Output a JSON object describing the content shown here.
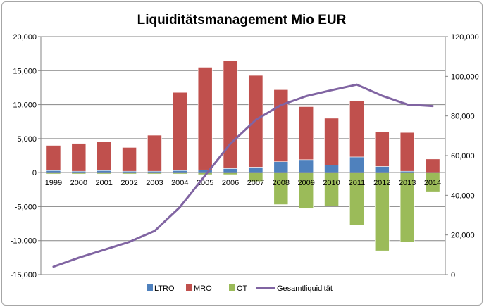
{
  "chart_data": {
    "type": "bar",
    "title": "Liquiditätsmanagement Mio EUR",
    "categories": [
      "1999",
      "2000",
      "2001",
      "2002",
      "2003",
      "2004",
      "2005",
      "2006",
      "2007",
      "2008",
      "2009",
      "2010",
      "2011",
      "2012",
      "2013",
      "2014"
    ],
    "series": [
      {
        "name": "LTRO",
        "type": "bar",
        "stack": "main",
        "axis": "left",
        "color": "#4f81bd",
        "values": [
          300,
          200,
          300,
          200,
          200,
          300,
          400,
          600,
          800,
          1600,
          1900,
          1100,
          2300,
          900,
          200,
          0
        ]
      },
      {
        "name": "MRO",
        "type": "bar",
        "stack": "main",
        "axis": "left",
        "color": "#c0504d",
        "values": [
          3700,
          4100,
          4300,
          3500,
          5300,
          11500,
          15100,
          15900,
          13500,
          10600,
          7800,
          6900,
          8300,
          5100,
          5700,
          2000
        ]
      },
      {
        "name": "OT",
        "type": "bar",
        "stack": "main",
        "axis": "left",
        "color": "#9bbb59",
        "values": [
          -200,
          -200,
          -200,
          -200,
          -200,
          -200,
          -300,
          -300,
          -1300,
          -4700,
          -5300,
          -4900,
          -7700,
          -11500,
          -10200,
          -2800
        ]
      },
      {
        "name": "Gesamtliquidität",
        "type": "line",
        "axis": "right",
        "color": "#8064a2",
        "values": [
          4000,
          8500,
          12500,
          16500,
          22000,
          34000,
          50000,
          66000,
          78000,
          85500,
          90000,
          93000,
          95800,
          90200,
          85800,
          85000
        ]
      }
    ],
    "ylim": [
      -15000,
      20000
    ],
    "y_ticks": [
      "-15,000",
      "-10,000",
      "-5,000",
      "0",
      "5,000",
      "10,000",
      "15,000",
      "20,000"
    ],
    "y2lim": [
      0,
      120000
    ],
    "y2_ticks": [
      "0",
      "20,000",
      "40,000",
      "60,000",
      "80,000",
      "100,000",
      "120,000"
    ],
    "grid": true,
    "legend": "bottom",
    "legend_items": [
      {
        "label": "LTRO",
        "kind": "box",
        "color": "#4f81bd"
      },
      {
        "label": "MRO",
        "kind": "box",
        "color": "#c0504d"
      },
      {
        "label": "OT",
        "kind": "box",
        "color": "#9bbb59"
      },
      {
        "label": "Gesamtliquidität",
        "kind": "line",
        "color": "#8064a2"
      }
    ]
  }
}
